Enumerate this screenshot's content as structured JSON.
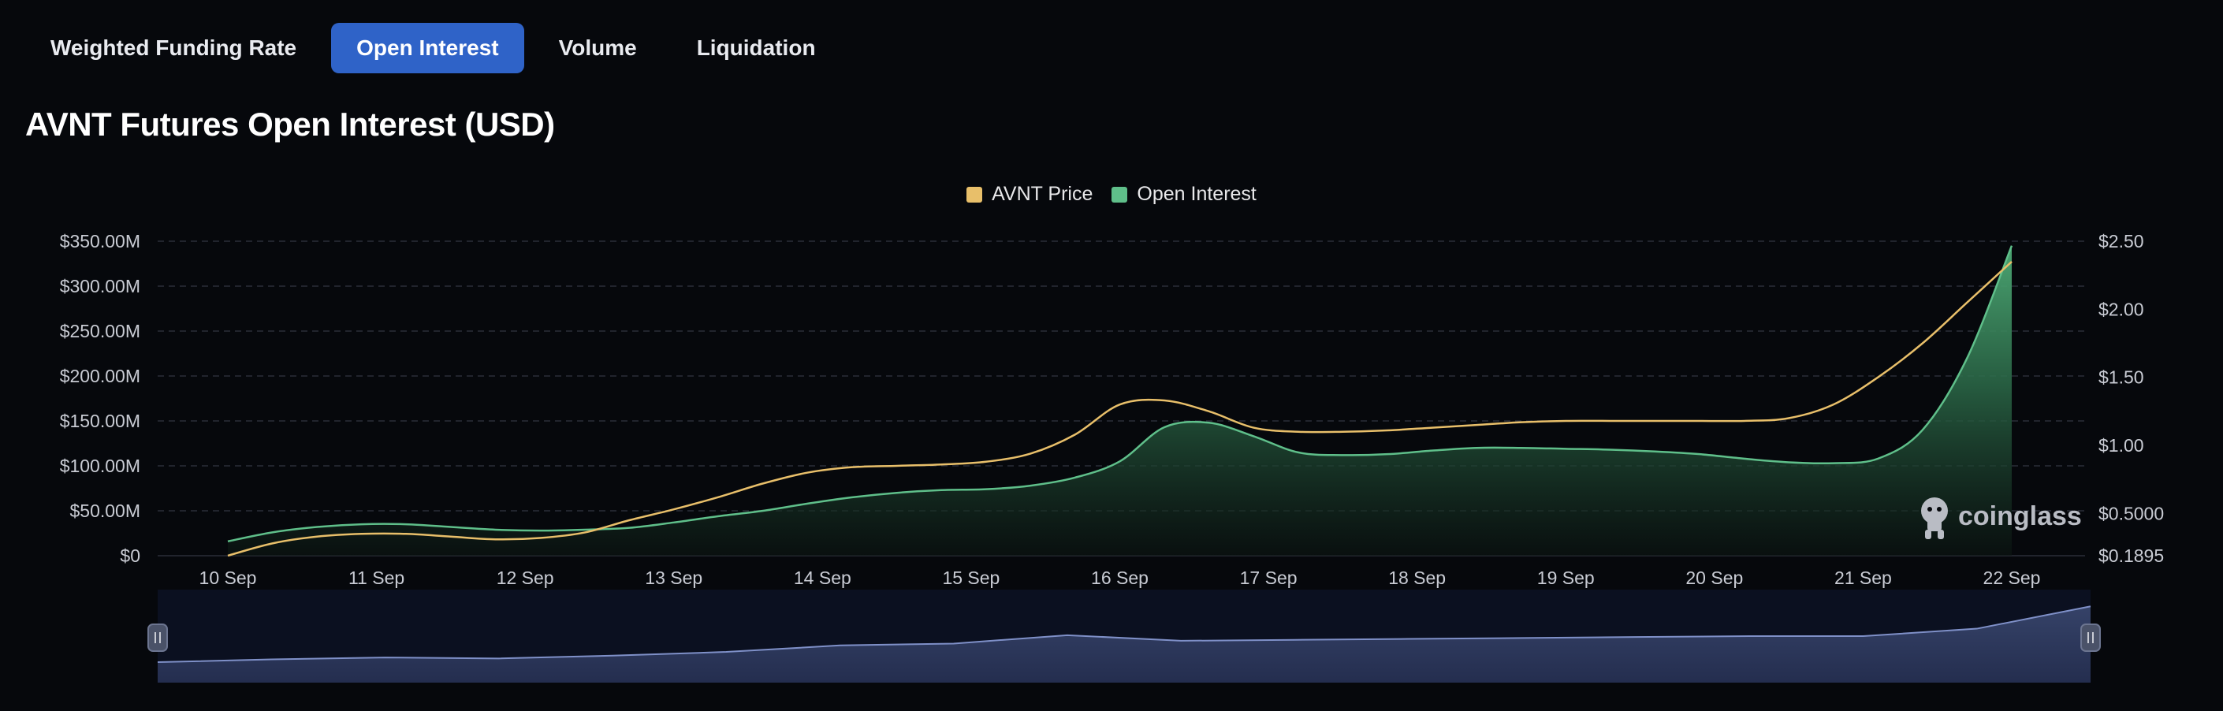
{
  "tabs": [
    {
      "label": "Weighted Funding Rate",
      "active": false
    },
    {
      "label": "Open Interest",
      "active": true
    },
    {
      "label": "Volume",
      "active": false
    },
    {
      "label": "Liquidation",
      "active": false
    }
  ],
  "title": "AVNT Futures Open Interest (USD)",
  "legend": [
    {
      "label": "AVNT Price",
      "color": "#e8bf6a"
    },
    {
      "label": "Open Interest",
      "color": "#5fbf8a"
    }
  ],
  "watermark": {
    "text": "coinglass",
    "icon": "coinglass-logo-icon"
  },
  "chart_data": {
    "type": "area",
    "categories": [
      "10 Sep",
      "11 Sep",
      "12 Sep",
      "13 Sep",
      "14 Sep",
      "15 Sep",
      "16 Sep",
      "17 Sep",
      "18 Sep",
      "19 Sep",
      "20 Sep",
      "21 Sep",
      "22 Sep"
    ],
    "y_left": {
      "ticks": [
        "$350.00M",
        "$300.00M",
        "$250.00M",
        "$200.00M",
        "$150.00M",
        "$100.00M",
        "$50.00M",
        "$0"
      ],
      "range": [
        0,
        350
      ]
    },
    "y_right": {
      "ticks": [
        "$2.50",
        "$2.00",
        "$1.50",
        "$1.00",
        "$0.5000",
        "$0.1895"
      ],
      "range": [
        0.1895,
        2.5
      ]
    },
    "grid": true,
    "legend_position": "top-center",
    "series": [
      {
        "name": "Open Interest",
        "axis": "left",
        "color": "#5fbf8a",
        "x": [
          0,
          0.3,
          0.6,
          0.9,
          1.2,
          1.5,
          1.8,
          2.1,
          2.4,
          2.7,
          3.0,
          3.3,
          3.6,
          3.9,
          4.2,
          4.5,
          4.8,
          5.1,
          5.4,
          5.7,
          6.0,
          6.3,
          6.6,
          6.9,
          7.2,
          7.5,
          7.8,
          8.1,
          8.4,
          8.7,
          9.0,
          9.3,
          9.6,
          9.9,
          10.2,
          10.5,
          10.8,
          11.1,
          11.4,
          11.7,
          12.0
        ],
        "values": [
          16,
          26,
          32,
          35,
          35,
          32,
          29,
          28,
          29,
          31,
          37,
          44,
          50,
          58,
          65,
          70,
          73,
          74,
          78,
          87,
          105,
          143,
          148,
          133,
          115,
          112,
          113,
          117,
          120,
          120,
          119,
          118,
          116,
          113,
          108,
          104,
          103,
          108,
          140,
          220,
          345
        ]
      },
      {
        "name": "AVNT Price",
        "axis": "right",
        "color": "#e8bf6a",
        "x": [
          0,
          0.3,
          0.6,
          0.9,
          1.2,
          1.5,
          1.8,
          2.1,
          2.4,
          2.7,
          3.0,
          3.3,
          3.6,
          3.9,
          4.2,
          4.5,
          4.8,
          5.1,
          5.4,
          5.7,
          6.0,
          6.3,
          6.6,
          6.9,
          7.2,
          7.5,
          7.8,
          8.1,
          8.4,
          8.7,
          9.0,
          9.3,
          9.6,
          9.9,
          10.2,
          10.5,
          10.8,
          11.1,
          11.4,
          11.7,
          12.0
        ],
        "values": [
          0.19,
          0.28,
          0.33,
          0.35,
          0.35,
          0.33,
          0.31,
          0.32,
          0.36,
          0.45,
          0.53,
          0.62,
          0.72,
          0.8,
          0.84,
          0.85,
          0.86,
          0.88,
          0.94,
          1.08,
          1.3,
          1.33,
          1.25,
          1.13,
          1.1,
          1.1,
          1.11,
          1.13,
          1.15,
          1.17,
          1.18,
          1.18,
          1.18,
          1.18,
          1.18,
          1.2,
          1.3,
          1.5,
          1.75,
          2.05,
          2.35
        ]
      }
    ]
  },
  "navigator": {
    "values": [
      0.22,
      0.25,
      0.27,
      0.26,
      0.29,
      0.33,
      0.4,
      0.42,
      0.51,
      0.45,
      0.46,
      0.47,
      0.48,
      0.49,
      0.5,
      0.5,
      0.58,
      0.82
    ],
    "left_handle": "drag-handle-icon",
    "right_handle": "drag-handle-icon"
  }
}
